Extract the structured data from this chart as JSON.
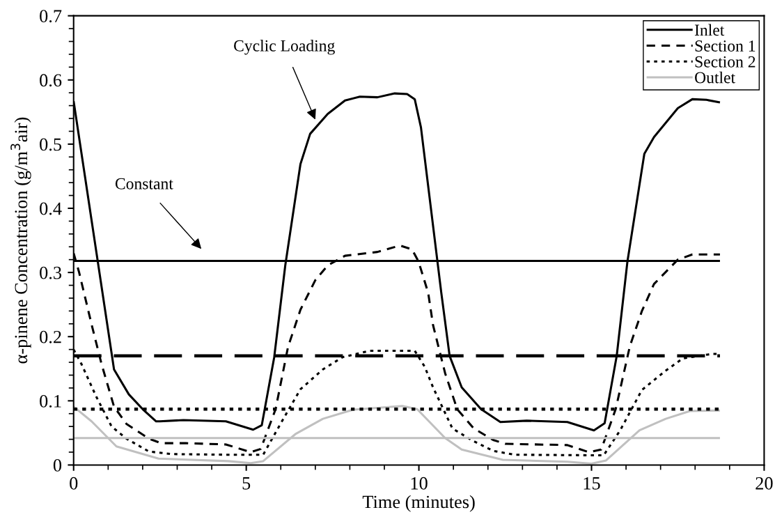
{
  "chart_data": {
    "type": "line",
    "xlabel": "Time (minutes)",
    "ylabel": "α-pinene Concentration (g/m$^{3}$air)",
    "xlim": [
      0,
      20
    ],
    "ylim": [
      0,
      0.7
    ],
    "xticks": [
      0,
      {
        "value": 1,
        "label": null
      },
      {
        "value": 2,
        "label": null
      },
      {
        "value": 3,
        "label": null
      },
      {
        "value": 4,
        "label": null
      },
      5,
      {
        "value": 6,
        "label": null
      },
      {
        "value": 7,
        "label": null
      },
      {
        "value": 8,
        "label": null
      },
      {
        "value": 9,
        "label": null
      },
      10,
      {
        "value": 11,
        "label": null
      },
      {
        "value": 12,
        "label": null
      },
      {
        "value": 13,
        "label": null
      },
      {
        "value": 14,
        "label": null
      },
      15,
      {
        "value": 16,
        "label": null
      },
      {
        "value": 17,
        "label": null
      },
      {
        "value": 18,
        "label": null
      },
      {
        "value": 19,
        "label": null
      },
      20
    ],
    "yticks": [
      0,
      {
        "value": 0.02,
        "label": null
      },
      {
        "value": 0.04,
        "label": null
      },
      {
        "value": 0.06,
        "label": null
      },
      {
        "value": 0.08,
        "label": null
      },
      0.1,
      {
        "value": 0.12,
        "label": null
      },
      {
        "value": 0.14,
        "label": null
      },
      {
        "value": 0.16,
        "label": null
      },
      {
        "value": 0.18,
        "label": null
      },
      0.2,
      {
        "value": 0.22,
        "label": null
      },
      {
        "value": 0.24,
        "label": null
      },
      {
        "value": 0.26,
        "label": null
      },
      {
        "value": 0.28,
        "label": null
      },
      0.3,
      {
        "value": 0.32,
        "label": null
      },
      {
        "value": 0.34,
        "label": null
      },
      {
        "value": 0.36,
        "label": null
      },
      {
        "value": 0.38,
        "label": null
      },
      0.4,
      {
        "value": 0.42,
        "label": null
      },
      {
        "value": 0.44,
        "label": null
      },
      {
        "value": 0.46,
        "label": null
      },
      {
        "value": 0.48,
        "label": null
      },
      0.5,
      {
        "value": 0.52,
        "label": null
      },
      {
        "value": 0.54,
        "label": null
      },
      {
        "value": 0.56,
        "label": null
      },
      {
        "value": 0.58,
        "label": null
      },
      0.6,
      {
        "value": 0.62,
        "label": null
      },
      {
        "value": 0.64,
        "label": null
      },
      {
        "value": 0.66,
        "label": null
      },
      {
        "value": 0.68,
        "label": null
      },
      0.7
    ],
    "grid": false,
    "legend": "top right",
    "marker": "none",
    "annotations": [
      "Cyclic Loading",
      "Constant"
    ],
    "series": [
      {
        "name": "Inlet",
        "color": "#000000",
        "line_style": "solid",
        "x": [
          0,
          1.17,
          1.6,
          2.0,
          2.39,
          2.5,
          3.18,
          4.41,
          5.2,
          5.45,
          5.81,
          6.13,
          6.57,
          6.85,
          7.36,
          7.86,
          8.29,
          8.8,
          9.3,
          9.66,
          9.88,
          10.06,
          10.65,
          10.89,
          11.24,
          11.8,
          12.36,
          13.12,
          14.3,
          15.07,
          15.38,
          15.73,
          16.04,
          16.53,
          16.81,
          17.5,
          17.92,
          18.33,
          18.72
        ],
        "values": [
          0.567,
          0.149,
          0.11,
          0.087,
          0.068,
          0.068,
          0.07,
          0.068,
          0.055,
          0.062,
          0.168,
          0.311,
          0.469,
          0.516,
          0.547,
          0.568,
          0.574,
          0.573,
          0.579,
          0.578,
          0.57,
          0.526,
          0.268,
          0.17,
          0.121,
          0.087,
          0.067,
          0.069,
          0.067,
          0.054,
          0.065,
          0.17,
          0.317,
          0.485,
          0.511,
          0.556,
          0.57,
          0.569,
          0.565
        ]
      },
      {
        "name": "Section 1",
        "color": "#000000",
        "line_style": "dashed",
        "x": [
          0,
          0.16,
          0.52,
          0.81,
          1.17,
          1.53,
          2.18,
          2.53,
          3.25,
          4.41,
          5.13,
          5.42,
          5.85,
          6.21,
          6.57,
          7.0,
          7.36,
          7.86,
          8.8,
          9.45,
          9.8,
          9.99,
          10.27,
          10.41,
          10.76,
          11.11,
          11.59,
          12.15,
          12.5,
          14.3,
          14.92,
          15.28,
          15.7,
          16.11,
          16.46,
          16.81,
          17.5,
          17.92,
          18.72
        ],
        "values": [
          0.33,
          0.3,
          0.219,
          0.157,
          0.091,
          0.064,
          0.041,
          0.034,
          0.034,
          0.032,
          0.02,
          0.025,
          0.087,
          0.184,
          0.242,
          0.288,
          0.311,
          0.326,
          0.332,
          0.342,
          0.336,
          0.317,
          0.268,
          0.218,
          0.143,
          0.087,
          0.057,
          0.039,
          0.033,
          0.031,
          0.02,
          0.024,
          0.087,
          0.185,
          0.24,
          0.282,
          0.32,
          0.328,
          0.328
        ]
      },
      {
        "name": "Section 2",
        "color": "#000000",
        "line_style": "dotted",
        "x": [
          0,
          0.23,
          0.66,
          1.1,
          1.53,
          2.18,
          2.82,
          4.41,
          5.49,
          5.99,
          6.57,
          7.22,
          7.79,
          8.58,
          9.88,
          10.17,
          10.41,
          10.97,
          11.52,
          12.15,
          12.77,
          15.35,
          15.83,
          16.46,
          17.15,
          17.64,
          18.48,
          18.72
        ],
        "values": [
          0.18,
          0.157,
          0.106,
          0.06,
          0.041,
          0.021,
          0.017,
          0.016,
          0.016,
          0.064,
          0.118,
          0.149,
          0.168,
          0.178,
          0.178,
          0.153,
          0.121,
          0.057,
          0.039,
          0.022,
          0.016,
          0.015,
          0.054,
          0.117,
          0.147,
          0.166,
          0.173,
          0.173
        ]
      },
      {
        "name": "Outlet",
        "color": "#c0c0c0",
        "line_style": "solid",
        "x": [
          0,
          0.52,
          1.24,
          2.46,
          4.48,
          5.13,
          5.49,
          6.42,
          7.22,
          8.08,
          9.52,
          9.95,
          10.76,
          11.24,
          12.43,
          14.3,
          15.0,
          15.42,
          16.39,
          17.15,
          17.85,
          18.72
        ],
        "values": [
          0.091,
          0.068,
          0.029,
          0.01,
          0.006,
          0.003,
          0.006,
          0.048,
          0.072,
          0.086,
          0.092,
          0.087,
          0.042,
          0.024,
          0.008,
          0.005,
          0.002,
          0.007,
          0.054,
          0.072,
          0.084,
          0.085
        ]
      },
      {
        "color": "#000000",
        "line_style": "solid",
        "x": [
          0,
          18.72
        ],
        "values": [
          0.318,
          0.318
        ]
      },
      {
        "color": "#000000",
        "line_style": "dashed",
        "x": [
          0,
          18.72
        ],
        "values": [
          0.17,
          0.17
        ]
      },
      {
        "color": "#000000",
        "line_style": "dotted",
        "x": [
          0,
          18.72
        ],
        "values": [
          0.087,
          0.087
        ]
      },
      {
        "color": "#c0c0c0",
        "line_style": "solid",
        "x": [
          0,
          18.72
        ],
        "values": [
          0.042,
          0.042
        ]
      }
    ]
  }
}
